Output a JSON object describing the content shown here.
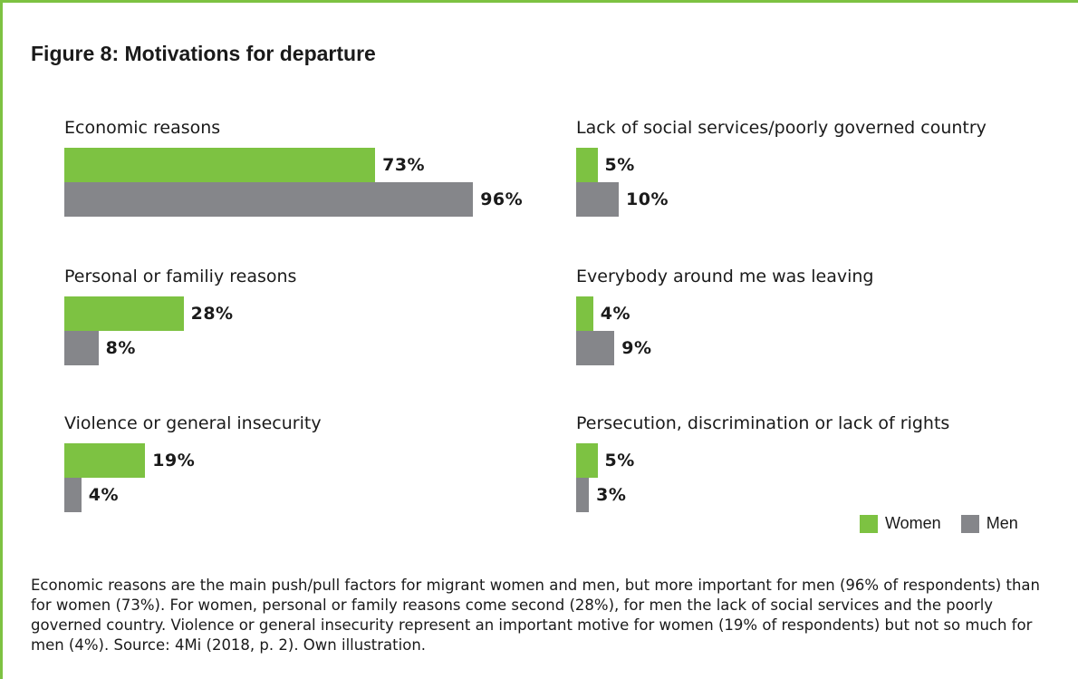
{
  "figure_title": "Figure 8: Motivations for departure",
  "colors": {
    "women": "#7dc242",
    "men": "#85868a",
    "frame": "#7dc242"
  },
  "legend": {
    "women": "Women",
    "men": "Men"
  },
  "caption": "Economic reasons are the main push/pull factors for migrant women and men, but more important for men (96% of respondents) than for women (73%). For women, personal or family reasons come second (28%), for men the lack of social services and the poorly governed country. Violence or general insecurity represent an important motive for women (19% of respondents) but not so much for men (4%). Source: 4Mi (2018, p. 2). Own illustration.",
  "chart_data": {
    "type": "bar",
    "orientation": "horizontal",
    "title": "Figure 8: Motivations for departure",
    "series": [
      {
        "name": "Women",
        "color": "#7dc242"
      },
      {
        "name": "Men",
        "color": "#85868a"
      }
    ],
    "categories": [
      {
        "label": "Economic reasons",
        "women": 73,
        "men": 96,
        "women_label": "73%",
        "men_label": "96%"
      },
      {
        "label": "Personal or familiy reasons",
        "women": 28,
        "men": 8,
        "women_label": "28%",
        "men_label": "8%"
      },
      {
        "label": "Violence or general insecurity",
        "women": 19,
        "men": 4,
        "women_label": "19%",
        "men_label": "4%"
      },
      {
        "label": "Lack of social services/poorly governed country",
        "women": 5,
        "men": 10,
        "women_label": "5%",
        "men_label": "10%"
      },
      {
        "label": "Everybody around me was leaving",
        "women": 4,
        "men": 9,
        "women_label": "4%",
        "men_label": "9%"
      },
      {
        "label": "Persecution, discrimination or lack of rights",
        "women": 5,
        "men": 3,
        "women_label": "5%",
        "men_label": "3%"
      }
    ],
    "legend_position": "bottom-right",
    "grid": false
  }
}
